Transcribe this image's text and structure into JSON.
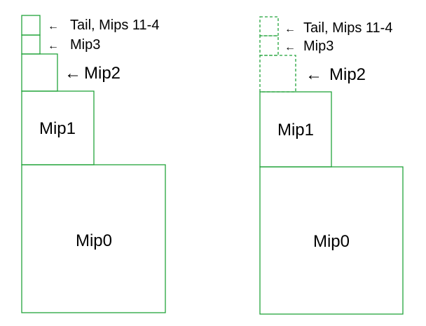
{
  "colors": {
    "box_stroke": "#22a33b",
    "text": "#000000"
  },
  "icons": {
    "arrow": "left-arrow-icon"
  },
  "left": {
    "mip0": "Mip0",
    "mip1": "Mip1",
    "mip2": "Mip2",
    "mip3": "Mip3",
    "tail": "Tail, Mips 11-4",
    "arrow": "←"
  },
  "right": {
    "mip0": "Mip0",
    "mip1": "Mip1",
    "mip2": "Mip2",
    "mip3": "Mip3",
    "tail": "Tail, Mips 11-4",
    "arrow": "←"
  }
}
